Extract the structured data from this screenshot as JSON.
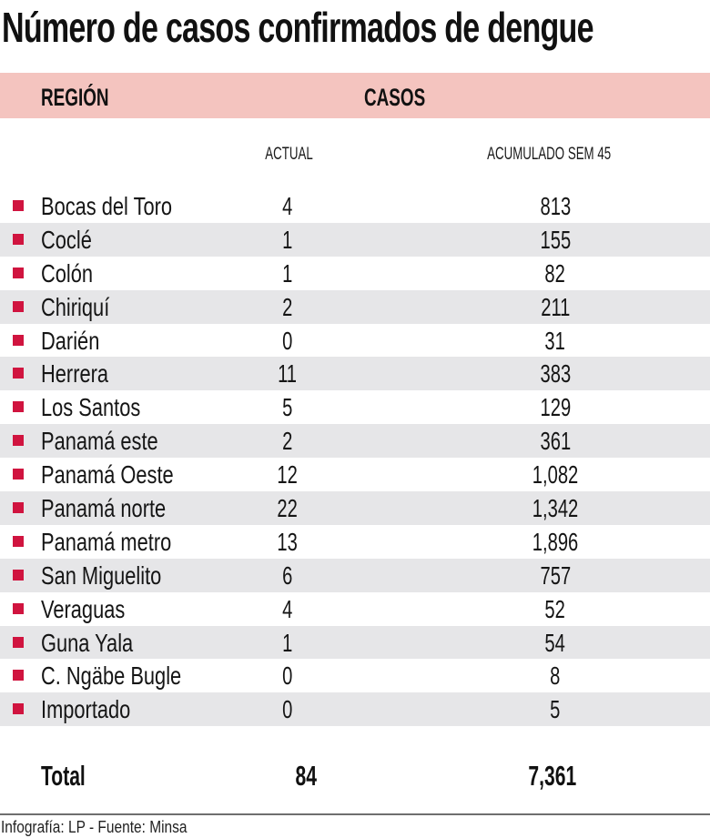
{
  "title": "Número de casos confirmados de dengue",
  "table": {
    "header": {
      "region_label": "REGIÓN",
      "cases_label": "CASOS",
      "actual_label": "ACTUAL",
      "accumulated_label": "ACUMULADO SEM 45"
    },
    "rows": [
      {
        "region": "Bocas del Toro",
        "actual": "4",
        "accumulated": "813"
      },
      {
        "region": "Coclé",
        "actual": "1",
        "accumulated": "155"
      },
      {
        "region": "Colón",
        "actual": "1",
        "accumulated": "82"
      },
      {
        "region": "Chiriquí",
        "actual": "2",
        "accumulated": "211"
      },
      {
        "region": "Darién",
        "actual": "0",
        "accumulated": "31"
      },
      {
        "region": "Herrera",
        "actual": "11",
        "accumulated": "383"
      },
      {
        "region": "Los Santos",
        "actual": "5",
        "accumulated": "129"
      },
      {
        "region": "Panamá este",
        "actual": "2",
        "accumulated": "361"
      },
      {
        "region": "Panamá Oeste",
        "actual": "12",
        "accumulated": "1,082"
      },
      {
        "region": "Panamá norte",
        "actual": "22",
        "accumulated": "1,342"
      },
      {
        "region": "Panamá metro",
        "actual": "13",
        "accumulated": "1,896"
      },
      {
        "region": "San Miguelito",
        "actual": "6",
        "accumulated": "757"
      },
      {
        "region": "Veraguas",
        "actual": "4",
        "accumulated": "52"
      },
      {
        "region": "Guna Yala",
        "actual": "1",
        "accumulated": "54"
      },
      {
        "region": "C. Ngäbe Bugle",
        "actual": "0",
        "accumulated": "8"
      },
      {
        "region": "Importado",
        "actual": "0",
        "accumulated": "5"
      }
    ],
    "total": {
      "label": "Total",
      "actual": "84",
      "accumulated": "7,361"
    }
  },
  "footer": {
    "credit": "Infografía: LP - Fuente: Minsa"
  },
  "colors": {
    "header_band": "#f4c4bf",
    "row_stripe": "#e6e6e8",
    "bullet": "#d0143f"
  },
  "icons": {
    "row_bullet": "square-bullet-icon"
  }
}
